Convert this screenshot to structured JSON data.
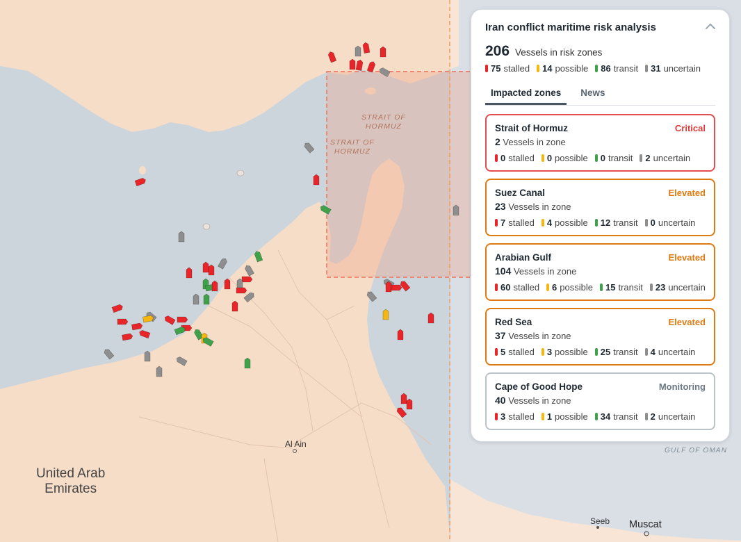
{
  "map": {
    "country_label": "United Arab\nEmirates",
    "strait_labels": [
      "STRAIT OF\nHORMUZ",
      "STRAIT OF\nHORMUZ"
    ],
    "gulf_label": "GULF OF OMAN",
    "cities": [
      "Al Ain",
      "Seeb",
      "Muscat"
    ]
  },
  "panel": {
    "title": "Iran conflict maritime risk analysis",
    "total": "206",
    "total_label": "Vessels in risk zones",
    "summary": [
      {
        "value": "75",
        "label": "stalled",
        "color": "#e8262a"
      },
      {
        "value": "14",
        "label": "possible",
        "color": "#f5b70f"
      },
      {
        "value": "86",
        "label": "transit",
        "color": "#3fa24a"
      },
      {
        "value": "31",
        "label": "uncertain",
        "color": "#8e8e8e"
      }
    ],
    "tabs": [
      {
        "label": "Impacted zones",
        "active": true
      },
      {
        "label": "News",
        "active": false
      }
    ],
    "zones": [
      {
        "name": "Strait of Hormuz",
        "level": "Critical",
        "level_color": "#e0393a",
        "border": "#e24d4d",
        "count": "2",
        "count_label": "Vessels in zone",
        "stats": [
          {
            "value": "0",
            "label": "stalled"
          },
          {
            "value": "0",
            "label": "possible"
          },
          {
            "value": "0",
            "label": "transit"
          },
          {
            "value": "2",
            "label": "uncertain"
          }
        ]
      },
      {
        "name": "Suez Canal",
        "level": "Elevated",
        "level_color": "#dd7a12",
        "border": "#dd7a12",
        "count": "23",
        "count_label": "Vessels in zone",
        "stats": [
          {
            "value": "7",
            "label": "stalled"
          },
          {
            "value": "4",
            "label": "possible"
          },
          {
            "value": "12",
            "label": "transit"
          },
          {
            "value": "0",
            "label": "uncertain"
          }
        ]
      },
      {
        "name": "Arabian Gulf",
        "level": "Elevated",
        "level_color": "#dd7a12",
        "border": "#dd7a12",
        "count": "104",
        "count_label": "Vessels in zone",
        "stats": [
          {
            "value": "60",
            "label": "stalled"
          },
          {
            "value": "6",
            "label": "possible"
          },
          {
            "value": "15",
            "label": "transit"
          },
          {
            "value": "23",
            "label": "uncertain"
          }
        ]
      },
      {
        "name": "Red Sea",
        "level": "Elevated",
        "level_color": "#dd7a12",
        "border": "#dd7a12",
        "count": "37",
        "count_label": "Vessels in zone",
        "stats": [
          {
            "value": "5",
            "label": "stalled"
          },
          {
            "value": "3",
            "label": "possible"
          },
          {
            "value": "25",
            "label": "transit"
          },
          {
            "value": "4",
            "label": "uncertain"
          }
        ]
      },
      {
        "name": "Cape of Good Hope",
        "level": "Monitoring",
        "level_color": "#6b7783",
        "border": "#b9c3cc",
        "count": "40",
        "count_label": "Vessels in zone",
        "stats": [
          {
            "value": "3",
            "label": "stalled"
          },
          {
            "value": "1",
            "label": "possible"
          },
          {
            "value": "34",
            "label": "transit"
          },
          {
            "value": "2",
            "label": "uncertain"
          }
        ]
      }
    ]
  }
}
